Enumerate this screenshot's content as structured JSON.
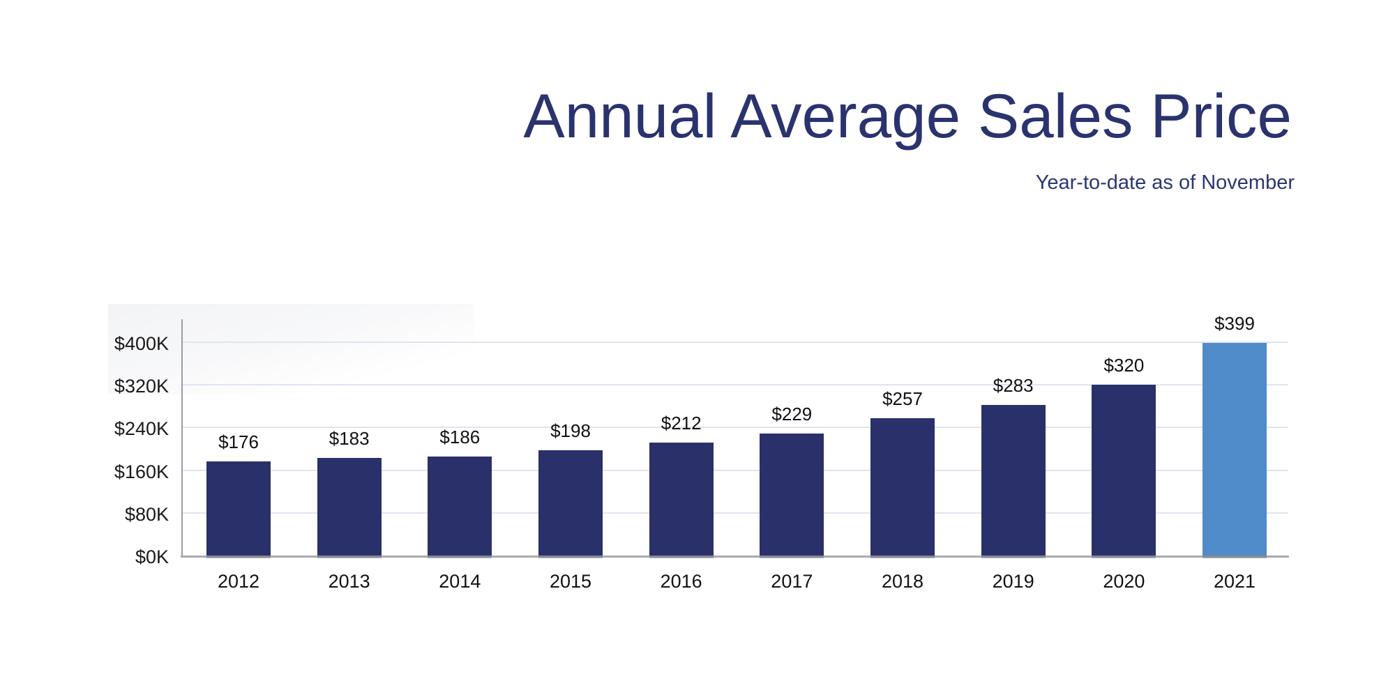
{
  "header": {
    "title": "Annual Average Sales Price",
    "subtitle": "Year-to-date as of November",
    "title_color": "#2a336e"
  },
  "chart_data": {
    "type": "bar",
    "title": "Annual Average Sales Price",
    "subtitle": "Year-to-date as of November",
    "categories": [
      "2012",
      "2013",
      "2014",
      "2015",
      "2016",
      "2017",
      "2018",
      "2019",
      "2020",
      "2021"
    ],
    "values": [
      176,
      183,
      186,
      198,
      212,
      229,
      257,
      283,
      320,
      399
    ],
    "value_labels": [
      "$176",
      "$183",
      "$186",
      "$198",
      "$212",
      "$229",
      "$257",
      "$283",
      "$320",
      "$399"
    ],
    "y_ticks": [
      {
        "value": 0,
        "label": "$0K"
      },
      {
        "value": 80,
        "label": "$80K"
      },
      {
        "value": 160,
        "label": "$160K"
      },
      {
        "value": 240,
        "label": "$240K"
      },
      {
        "value": 320,
        "label": "$320K"
      },
      {
        "value": 400,
        "label": "$400K"
      }
    ],
    "ylim": [
      0,
      443
    ],
    "xlabel": "",
    "ylabel": "",
    "grid": true,
    "legend": false,
    "bar_color": "#29306a",
    "highlight_bar_color": "#4f8cc9",
    "highlight_index": 9,
    "gridline_color": "#dee5f0",
    "axis_color": "#a6a9b0"
  }
}
